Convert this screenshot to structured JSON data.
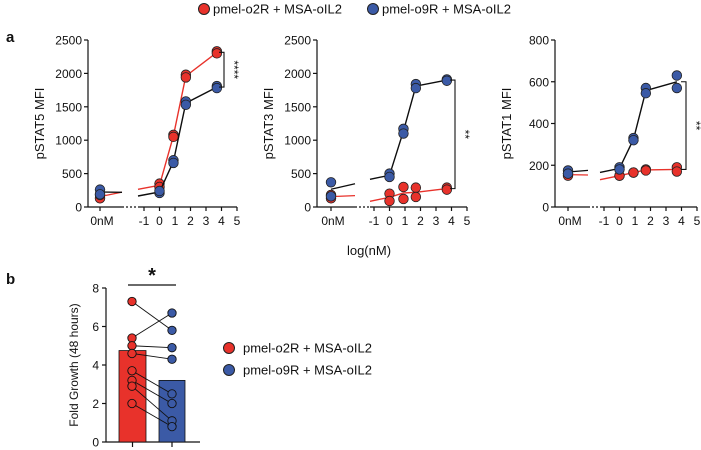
{
  "colors": {
    "red": "#e8322b",
    "red_line": "#e8322b",
    "blue": "#3b5aa6",
    "blue_line": "#0d0d0d",
    "outline": "#222222"
  },
  "legend": [
    {
      "label": "pmel-o2R + MSA-oIL2",
      "color": "#e8322b"
    },
    {
      "label": "pmel-o9R + MSA-oIL2",
      "color": "#3b5aa6"
    }
  ],
  "panel_labels": {
    "a": "a",
    "b": "b"
  },
  "shared_x_label": "log(nM)",
  "chart_data": [
    {
      "type": "line",
      "panel": "a1",
      "ylabel": "pSTAT5 MFI",
      "ylim": [
        0,
        2500
      ],
      "yticks": [
        0,
        500,
        1000,
        1500,
        2000,
        2500
      ],
      "xticks": [
        "-1",
        "0",
        "1",
        "2",
        "3",
        "4",
        "5"
      ],
      "zero_label": "0nM",
      "significance": "****",
      "series": [
        {
          "name": "pmel-o2R + MSA-oIL2",
          "color": "red",
          "zero": [
            130,
            180
          ],
          "x": [
            0,
            0.9,
            1.7,
            3.7
          ],
          "y": [
            [
              350,
              300
            ],
            [
              1080,
              1050
            ],
            [
              1980,
              1940
            ],
            [
              2330,
              2300
            ]
          ]
        },
        {
          "name": "pmel-o9R + MSA-oIL2",
          "color": "blue",
          "zero": [
            260,
            190
          ],
          "x": [
            0,
            0.9,
            1.7,
            3.7
          ],
          "y": [
            [
              210,
              240
            ],
            [
              700,
              660
            ],
            [
              1580,
              1530
            ],
            [
              1810,
              1780
            ]
          ]
        }
      ]
    },
    {
      "type": "line",
      "panel": "a2",
      "ylabel": "pSTAT3 MFI",
      "ylim": [
        0,
        2500
      ],
      "yticks": [
        0,
        500,
        1000,
        1500,
        2000,
        2500
      ],
      "xticks": [
        "-1",
        "0",
        "1",
        "2",
        "3",
        "4",
        "5"
      ],
      "zero_label": "0nM",
      "significance": "**",
      "series": [
        {
          "name": "pmel-o2R + MSA-oIL2",
          "color": "red",
          "zero": [
            130,
            180
          ],
          "x": [
            0,
            0.9,
            1.7,
            3.7
          ],
          "y": [
            [
              200,
              90
            ],
            [
              300,
              120
            ],
            [
              290,
              150
            ],
            [
              290,
              260
            ]
          ]
        },
        {
          "name": "pmel-o9R + MSA-oIL2",
          "color": "blue",
          "zero": [
            370,
            160
          ],
          "x": [
            0,
            0.9,
            1.7,
            3.7
          ],
          "y": [
            [
              500,
              450
            ],
            [
              1170,
              1100
            ],
            [
              1840,
              1780
            ],
            [
              1910,
              1890
            ]
          ]
        }
      ]
    },
    {
      "type": "line",
      "panel": "a3",
      "ylabel": "pSTAT1 MFI",
      "ylim": [
        0,
        800
      ],
      "yticks": [
        0,
        200,
        400,
        600,
        800
      ],
      "xticks": [
        "-1",
        "0",
        "1",
        "2",
        "3",
        "4",
        "5"
      ],
      "zero_label": "0nM",
      "significance": "**",
      "series": [
        {
          "name": "pmel-o2R + MSA-oIL2",
          "color": "red",
          "zero": [
            150,
            160
          ],
          "x": [
            0,
            0.9,
            1.7,
            3.7
          ],
          "y": [
            [
              150,
              150
            ],
            [
              165,
              165
            ],
            [
              180,
              175
            ],
            [
              190,
              170
            ]
          ]
        },
        {
          "name": "pmel-o9R + MSA-oIL2",
          "color": "blue",
          "zero": [
            175,
            160
          ],
          "x": [
            0,
            0.9,
            1.7,
            3.7
          ],
          "y": [
            [
              190,
              180
            ],
            [
              330,
              320
            ],
            [
              570,
              545
            ],
            [
              630,
              570
            ]
          ]
        }
      ]
    },
    {
      "type": "bar",
      "panel": "b",
      "ylabel": "Fold Growth (48 hours)",
      "ylim": [
        0,
        8
      ],
      "yticks": [
        0,
        2,
        4,
        6,
        8
      ],
      "significance": "*",
      "categories": [
        "pmel-o2R + MSA-oIL2",
        "pmel-o9R + MSA-oIL2"
      ],
      "values": [
        4.75,
        3.2
      ],
      "pairs": [
        [
          7.3,
          5.8
        ],
        [
          5.4,
          6.7
        ],
        [
          5.0,
          4.9
        ],
        [
          4.6,
          4.3
        ],
        [
          3.7,
          2.5
        ],
        [
          3.2,
          2.0
        ],
        [
          2.9,
          1.1
        ],
        [
          2.0,
          0.8
        ]
      ]
    }
  ]
}
